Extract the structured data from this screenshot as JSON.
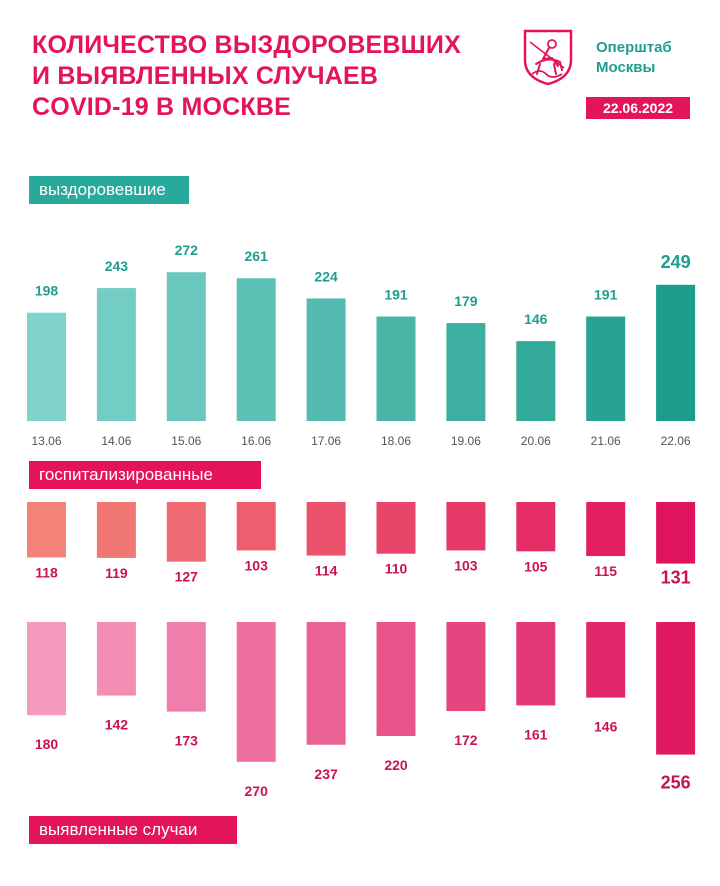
{
  "header": {
    "title_lines": [
      "КОЛИЧЕСТВО ВЫЗДОРОВЕВШИХ",
      "И ВЫЯВЛЕННЫХ СЛУЧАЕВ",
      "COVID-19 В МОСКВЕ"
    ],
    "org_line1": "Оперштаб",
    "org_line2": "Москвы",
    "date": "22.06.2022"
  },
  "labels": {
    "recovered": "выздоровевшие",
    "hospitalized": "госпитализированные",
    "cases": "выявленные случаи"
  },
  "colors": {
    "brand_pink": "#e4145a",
    "brand_teal": "#27a99c",
    "teal_light": "#7fd3cb",
    "teal_dark": "#1c9d8b",
    "hosp_light": "#f38378",
    "hosp_dark": "#e0145e",
    "cases_light": "#f59bbf",
    "cases_dark": "#df1a60"
  },
  "chart_data": {
    "type": "bar",
    "title": "Количество выздоровевших и выявленных случаев COVID-19 в Москве",
    "categories": [
      "13.06",
      "14.06",
      "15.06",
      "16.06",
      "17.06",
      "18.06",
      "19.06",
      "20.06",
      "21.06",
      "22.06"
    ],
    "series": [
      {
        "name": "выздоровевшие",
        "values": [
          198,
          243,
          272,
          261,
          224,
          191,
          179,
          146,
          191,
          249
        ]
      },
      {
        "name": "госпитализированные",
        "values": [
          118,
          119,
          127,
          103,
          114,
          110,
          103,
          105,
          115,
          131
        ]
      },
      {
        "name": "выявленные случаи",
        "values": [
          180,
          142,
          173,
          270,
          237,
          220,
          172,
          161,
          146,
          256
        ]
      }
    ],
    "highlight_category": "22.06"
  }
}
